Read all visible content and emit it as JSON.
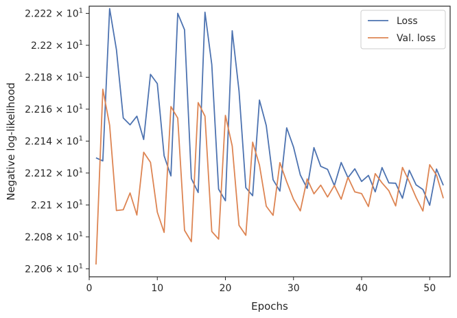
{
  "chart_data": {
    "type": "line",
    "xlabel": "Epochs",
    "ylabel": "Negative log-likelihood",
    "xlim": [
      0,
      53
    ],
    "ylim": [
      22.055,
      22.2245
    ],
    "xticks": [
      0,
      10,
      20,
      30,
      40,
      50
    ],
    "xtick_labels": [
      "0",
      "10",
      "20",
      "30",
      "40",
      "50"
    ],
    "yticks": [
      22.06,
      22.08,
      22.1,
      22.12,
      22.14,
      22.16,
      22.18,
      22.2,
      22.22
    ],
    "ytick_labels": [
      "2.206",
      "2.208",
      "2.21",
      "2.212",
      "2.214",
      "2.216",
      "2.218",
      "2.22",
      "2.222"
    ],
    "ytick_suffix_base": "× 10",
    "ytick_suffix_exp": "1",
    "grid": false,
    "legend_position": "top-right",
    "x": [
      1,
      2,
      3,
      4,
      5,
      6,
      7,
      8,
      9,
      10,
      11,
      12,
      13,
      14,
      15,
      16,
      17,
      18,
      19,
      20,
      21,
      22,
      23,
      24,
      25,
      26,
      27,
      28,
      29,
      30,
      31,
      32,
      33,
      34,
      35,
      36,
      37,
      38,
      39,
      40,
      41,
      42,
      43,
      44,
      45,
      46,
      47,
      48,
      49,
      50,
      51,
      52
    ],
    "series": [
      {
        "name": "Loss",
        "color": "#4c72b0",
        "values": [
          22.1295,
          22.1276,
          22.223,
          22.1972,
          22.1545,
          22.1502,
          22.1556,
          22.141,
          22.1818,
          22.176,
          22.1308,
          22.1182,
          22.22,
          22.2097,
          22.1165,
          22.1078,
          22.2207,
          22.188,
          22.1099,
          22.1026,
          22.2091,
          22.1714,
          22.1108,
          22.1058,
          22.1657,
          22.1497,
          22.1158,
          22.1087,
          22.1483,
          22.1363,
          22.1188,
          22.1104,
          22.1359,
          22.1242,
          22.1223,
          22.1121,
          22.1266,
          22.1171,
          22.1226,
          22.1147,
          22.1185,
          22.1082,
          22.1234,
          22.1138,
          22.1136,
          22.1042,
          22.1217,
          22.1126,
          22.1097,
          22.0998,
          22.1225,
          22.1123
        ]
      },
      {
        "name": "Val. loss",
        "color": "#dd8452",
        "values": [
          22.0627,
          22.1725,
          22.15,
          22.0965,
          22.097,
          22.1075,
          22.0937,
          22.133,
          22.1267,
          22.0955,
          22.0828,
          22.1616,
          22.1544,
          22.0841,
          22.077,
          22.1641,
          22.1556,
          22.0834,
          22.0786,
          22.1561,
          22.1369,
          22.0872,
          22.081,
          22.1393,
          22.125,
          22.0992,
          22.0935,
          22.1265,
          22.1145,
          22.1036,
          22.0963,
          22.1163,
          22.107,
          22.1124,
          22.105,
          22.1122,
          22.1036,
          22.1173,
          22.1082,
          22.1071,
          22.099,
          22.1196,
          22.1138,
          22.1089,
          22.0994,
          22.1235,
          22.1146,
          22.1047,
          22.0962,
          22.1252,
          22.1187,
          22.1042
        ]
      }
    ]
  }
}
